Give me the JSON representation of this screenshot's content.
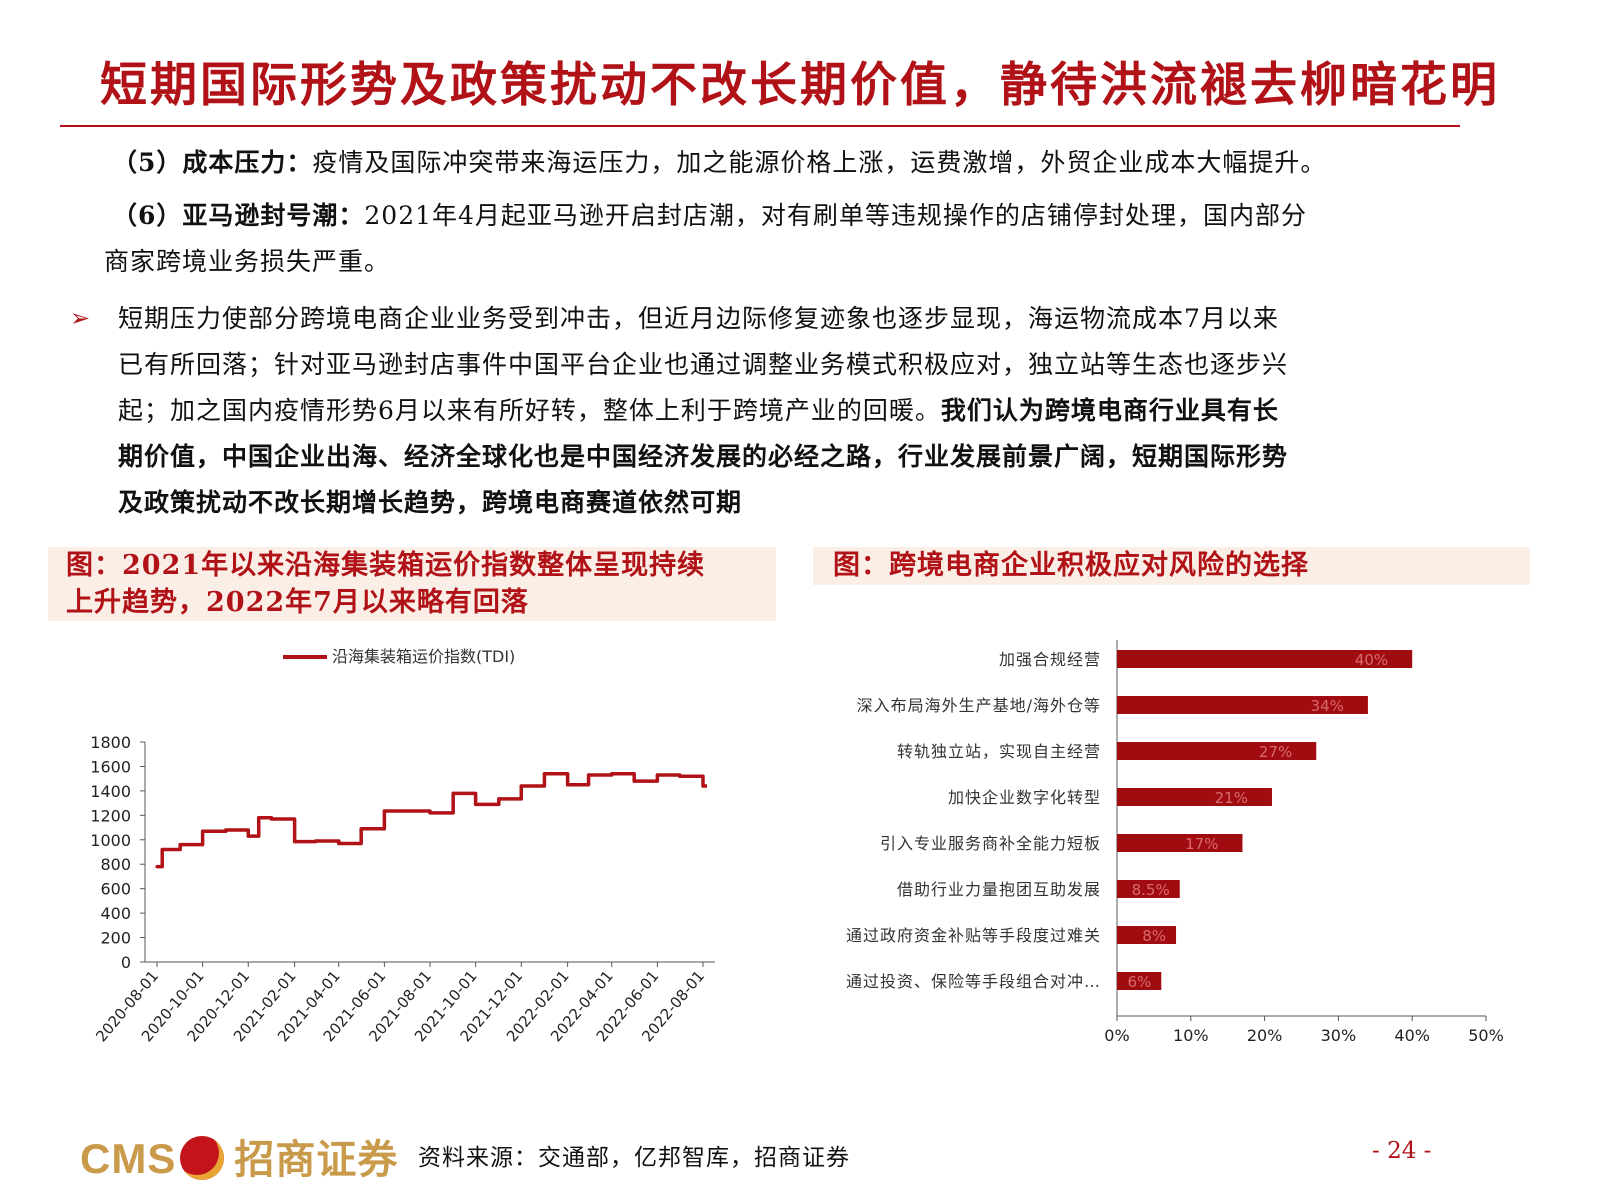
{
  "title": "短期国际形势及政策扰动不改长期价值，静待洪流褪去柳暗花明",
  "items": [
    {
      "label": "（5）成本压力：",
      "text": "疫情及国际冲突带来海运压力，加之能源价格上涨，运费激增，外贸企业成本大幅提升。"
    },
    {
      "label": "（6）亚马逊封号潮：",
      "text_line1": "2021年4月起亚马逊开启封店潮，对有刷单等违规操作的店铺停封处理，国内部分",
      "text_line2": "商家跨境业务损失严重。"
    }
  ],
  "bullet": {
    "symbol": "➢",
    "line1": "短期压力使部分跨境电商企业业务受到冲击，但近月边际修复迹象也逐步显现，海运物流成本7月以来",
    "line2": "已有所回落；针对亚马逊封店事件中国平台企业也通过调整业务模式积极应对，独立站等生态也逐步兴",
    "line3_normal": "起；加之国内疫情形势6月以来有所好转，整体上利于跨境产业的回暖。",
    "line3_bold": "我们认为跨境电商行业具有长",
    "line4": "期价值，中国企业出海、经济全球化也是中国经济发展的必经之路，行业发展前景广阔，短期国际形势",
    "line5": "及政策扰动不改长期增长趋势，跨境电商赛道依然可期"
  },
  "left_caption": {
    "line1": "图：2021年以来沿海集装箱运价指数整体呈现持续",
    "line2": "上升趋势，2022年7月以来略有回落"
  },
  "right_caption": "图：跨境电商企业积极应对风险的选择",
  "footer": {
    "logo_text": "CMS",
    "logo_cn": "招商证券",
    "source": "资料来源：交通部，亿邦智库，招商证券",
    "page": "- 24 -"
  },
  "colors": {
    "accent": "#b01217",
    "bar": "#a00c10",
    "caption_bg": "#fbeee6",
    "logo_gold": "#c89a4a"
  },
  "chart_data": [
    {
      "type": "line",
      "series": [
        {
          "name": "沿海集装箱运价指数(TDI)",
          "color": "#b01217"
        }
      ],
      "x": [
        "2020-08-01",
        "2020-08-08",
        "2020-09-01",
        "2020-10-01",
        "2020-11-01",
        "2020-12-01",
        "2020-12-15",
        "2021-01-01",
        "2021-02-01",
        "2021-03-01",
        "2021-04-01",
        "2021-05-01",
        "2021-06-01",
        "2021-07-01",
        "2021-08-01",
        "2021-09-01",
        "2021-10-01",
        "2021-11-01",
        "2021-12-01",
        "2022-01-01",
        "2022-02-01",
        "2022-03-01",
        "2022-04-01",
        "2022-05-01",
        "2022-06-01",
        "2022-07-01",
        "2022-08-01"
      ],
      "y": [
        780,
        920,
        960,
        1070,
        1080,
        1030,
        1180,
        1170,
        985,
        990,
        970,
        1090,
        1235,
        1235,
        1220,
        1380,
        1290,
        1335,
        1440,
        1540,
        1450,
        1530,
        1540,
        1480,
        1530,
        1520,
        1440
      ],
      "xticks": [
        "2020-08-01",
        "2020-10-01",
        "2020-12-01",
        "2021-02-01",
        "2021-04-01",
        "2021-06-01",
        "2021-08-01",
        "2021-10-01",
        "2021-12-01",
        "2022-02-01",
        "2022-04-01",
        "2022-06-01",
        "2022-08-01"
      ],
      "yticks": [
        0,
        200,
        400,
        600,
        800,
        1000,
        1200,
        1400,
        1600,
        1800
      ],
      "ylim": [
        0,
        1800
      ],
      "legend": "top"
    },
    {
      "type": "bar",
      "orientation": "horizontal",
      "categories": [
        "加强合规经营",
        "深入布局海外生产基地/海外仓等",
        "转轨独立站，实现自主经营",
        "加快企业数字化转型",
        "引入专业服务商补全能力短板",
        "借助行业力量抱团互助发展",
        "通过政府资金补贴等手段度过难关",
        "通过投资、保险等手段组合对冲…"
      ],
      "values": [
        40,
        34,
        27,
        21,
        17,
        8.5,
        8,
        6
      ],
      "data_labels": [
        "40%",
        "34%",
        "27%",
        "21%",
        "17%",
        "8.5%",
        "8%",
        "6%"
      ],
      "xticks": [
        "0%",
        "10%",
        "20%",
        "30%",
        "40%",
        "50%"
      ],
      "xlim": [
        0,
        50
      ]
    }
  ]
}
